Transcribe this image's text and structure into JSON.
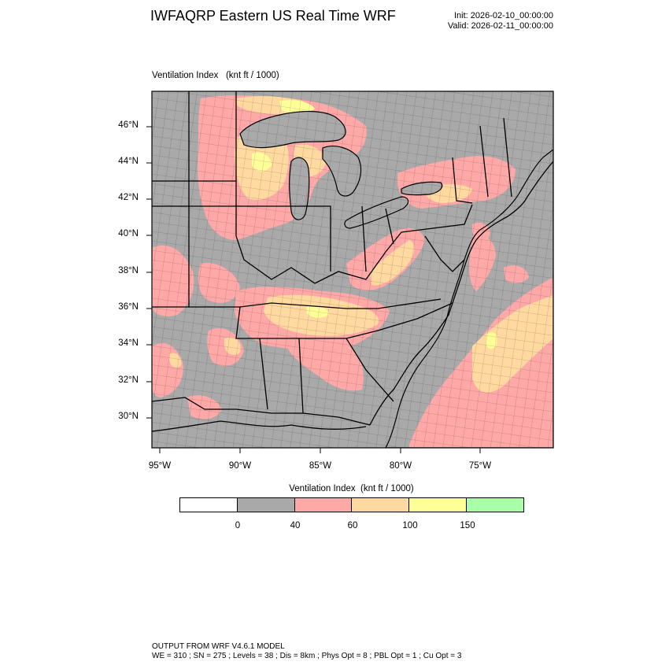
{
  "header": {
    "title": "IWFAQRP Eastern US Real Time WRF",
    "init": "Init: 2026-02-10_00:00:00",
    "valid": "Valid: 2026-02-11_00:00:00"
  },
  "plot": {
    "field_label": "Ventilation Index   (knt ft / 1000)",
    "lat_labels": [
      "46°N",
      "44°N",
      "42°N",
      "40°N",
      "38°N",
      "36°N",
      "34°N",
      "32°N",
      "30°N"
    ],
    "lon_labels": [
      "95°W",
      "90°W",
      "85°W",
      "80°W",
      "75°W"
    ]
  },
  "colorbar": {
    "title": "Ventilation Index  (knt ft / 1000)",
    "colors": [
      "#ffffff",
      "#a9a9a9",
      "#ffa8a8",
      "#ffd9a0",
      "#ffff99",
      "#a8ffa8"
    ],
    "ticks": [
      "0",
      "40",
      "60",
      "100",
      "150"
    ]
  },
  "footer": {
    "line1": "OUTPUT FROM WRF V4.6.1 MODEL",
    "line2": "WE = 310 ; SN = 275 ; Levels = 38 ; Dis = 8km ; Phys Opt = 8 ; PBL Opt = 1 ; Cu Opt = 3"
  }
}
